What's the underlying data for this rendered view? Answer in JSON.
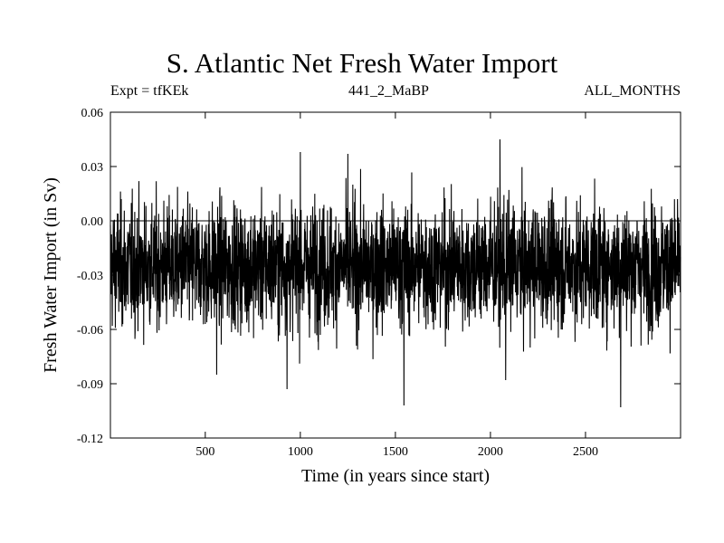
{
  "chart_data": {
    "type": "line",
    "title": "S. Atlantic Net Fresh Water Import",
    "subtitle_left": "Expt = tfKEk",
    "subtitle_center": "441_2_MaBP",
    "subtitle_right": "ALL_MONTHS",
    "xlabel": "Time (in years since start)",
    "ylabel": "Fresh Water Import (in Sv)",
    "xlim": [
      1,
      3000
    ],
    "ylim": [
      -0.12,
      0.06
    ],
    "x_ticks": [
      500,
      1000,
      1500,
      2000,
      2500
    ],
    "y_ticks": [
      -0.12,
      -0.09,
      -0.06,
      -0.03,
      0.0,
      0.03,
      0.06
    ],
    "y_tick_labels": [
      "-0.12",
      "-0.09",
      "-0.06",
      "-0.03",
      "0.00",
      "0.03",
      "0.06"
    ],
    "reference_line_y": 0.0,
    "series": [
      {
        "color": "#000000",
        "mean": -0.025,
        "std": 0.017,
        "n_points": 3000,
        "notable_extremes": [
          {
            "x": 930,
            "y": -0.093
          },
          {
            "x": 1545,
            "y": -0.102
          },
          {
            "x": 2050,
            "y": 0.045
          },
          {
            "x": 2685,
            "y": -0.103
          },
          {
            "x": 1000,
            "y": 0.038
          },
          {
            "x": 1250,
            "y": 0.037
          },
          {
            "x": 560,
            "y": -0.085
          },
          {
            "x": 2080,
            "y": -0.088
          }
        ]
      }
    ]
  }
}
